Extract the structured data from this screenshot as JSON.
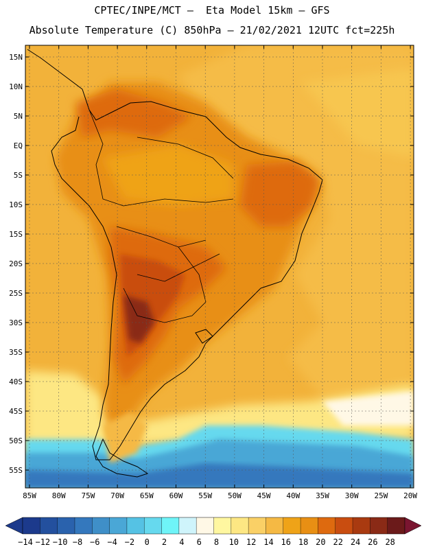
{
  "title_line1": "CPTEC/INPE/MCT –  Eta Model 15km – GFS",
  "title_line2": "Absolute Temperature (C) 850hPa – 21/02/2021 12UTC fct=225h",
  "lat_labels": [
    "15N",
    "10N",
    "5N",
    "EQ",
    "5S",
    "10S",
    "15S",
    "20S",
    "25S",
    "30S",
    "35S",
    "40S",
    "45S",
    "50S",
    "55S"
  ],
  "lon_labels": [
    "85W",
    "80W",
    "75W",
    "70W",
    "65W",
    "60W",
    "55W",
    "50W",
    "45W",
    "40W",
    "35W",
    "30W",
    "25W",
    "20W"
  ],
  "colorbar": {
    "colors": [
      "#1c3a8c",
      "#23509e",
      "#2a62ad",
      "#3478bd",
      "#3f8fc8",
      "#4aa7d6",
      "#55c2e4",
      "#66d9ee",
      "#6ff4f8",
      "#cff4fb",
      "#fff8e6",
      "#fff7a0",
      "#fde783",
      "#fad066",
      "#f5b944",
      "#efa318",
      "#e88f14",
      "#de6a0f",
      "#c94d10",
      "#a93a10",
      "#8a2a16",
      "#6b1a1a"
    ],
    "left_arrow": "#1c3a8c",
    "right_arrow": "#7a1530",
    "labels": [
      "-14",
      "-12",
      "-10",
      "-8",
      "-6",
      "-4",
      "-2",
      "0",
      "2",
      "4",
      "6",
      "8",
      "10",
      "12",
      "14",
      "16",
      "18",
      "20",
      "22",
      "24",
      "26",
      "28"
    ]
  }
}
